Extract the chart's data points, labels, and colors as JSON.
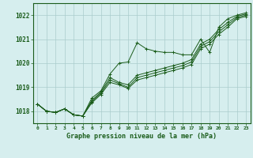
{
  "title": "Graphe pression niveau de la mer (hPa)",
  "background_color": "#d6eeee",
  "grid_color": "#aacccc",
  "line_color": "#1a5c1a",
  "x_labels": [
    "0",
    "1",
    "2",
    "3",
    "4",
    "5",
    "6",
    "7",
    "8",
    "9",
    "10",
    "11",
    "12",
    "13",
    "14",
    "15",
    "16",
    "17",
    "18",
    "19",
    "20",
    "21",
    "22",
    "23"
  ],
  "ylim": [
    1017.5,
    1022.5
  ],
  "yticks": [
    1018,
    1019,
    1020,
    1021,
    1022
  ],
  "series": [
    [
      1018.3,
      1018.0,
      1017.95,
      1018.1,
      1017.85,
      1017.8,
      1018.55,
      1018.85,
      1019.55,
      1020.0,
      1020.05,
      1020.85,
      1020.6,
      1020.5,
      1020.45,
      1020.45,
      1020.35,
      1020.35,
      1021.0,
      1020.45,
      1021.5,
      1021.85,
      1022.0,
      1022.1
    ],
    [
      1018.3,
      1018.0,
      1017.95,
      1018.1,
      1017.85,
      1017.8,
      1018.45,
      1018.8,
      1019.4,
      1019.2,
      1019.1,
      1019.5,
      1019.6,
      1019.7,
      1019.8,
      1019.9,
      1020.0,
      1020.15,
      1020.8,
      1021.0,
      1021.4,
      1021.7,
      1021.95,
      1022.05
    ],
    [
      1018.3,
      1018.0,
      1017.95,
      1018.1,
      1017.85,
      1017.8,
      1018.4,
      1018.75,
      1019.3,
      1019.15,
      1019.0,
      1019.4,
      1019.5,
      1019.6,
      1019.7,
      1019.8,
      1019.9,
      1020.05,
      1020.7,
      1020.9,
      1021.3,
      1021.6,
      1021.9,
      1022.0
    ],
    [
      1018.3,
      1018.0,
      1017.95,
      1018.1,
      1017.85,
      1017.8,
      1018.35,
      1018.7,
      1019.2,
      1019.1,
      1018.95,
      1019.3,
      1019.4,
      1019.5,
      1019.6,
      1019.7,
      1019.8,
      1019.95,
      1020.6,
      1020.8,
      1021.2,
      1021.5,
      1021.85,
      1021.95
    ]
  ]
}
